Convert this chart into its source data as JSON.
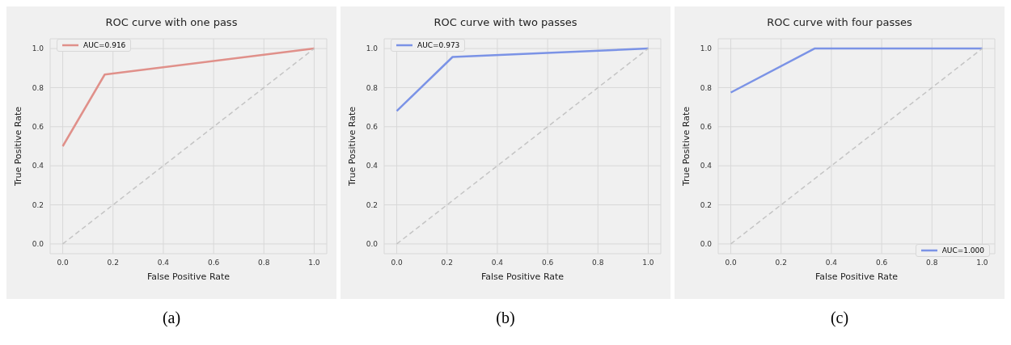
{
  "chart_data": [
    {
      "type": "line",
      "title": "ROC curve with one pass",
      "xlabel": "False Positive Rate",
      "ylabel": "True Positive Rate",
      "annotations": [
        "(a)"
      ],
      "xlim": [
        -0.05,
        1.05
      ],
      "ylim": [
        -0.05,
        1.05
      ],
      "xticks": [
        {
          "value": 0,
          "label": "0.0"
        },
        {
          "value": 0.2,
          "label": "0.2"
        },
        {
          "value": 0.4,
          "label": "0.4"
        },
        {
          "value": 0.6,
          "label": "0.6"
        },
        {
          "value": 0.8,
          "label": "0.8"
        },
        {
          "value": 1,
          "label": "1.0"
        }
      ],
      "yticks": [
        {
          "value": 0,
          "label": "0.0"
        },
        {
          "value": 0.2,
          "label": "0.2"
        },
        {
          "value": 0.4,
          "label": "0.4"
        },
        {
          "value": 0.6,
          "label": "0.6"
        },
        {
          "value": 0.8,
          "label": "0.8"
        },
        {
          "value": 1,
          "label": "1.0"
        }
      ],
      "grid": true,
      "legend": "top left",
      "line_style": "solid",
      "series": [
        {
          "name": "AUC=0.916",
          "color": "#e0908a",
          "x": [
            0,
            0.167,
            1
          ],
          "values": [
            0.5,
            0.867,
            1
          ]
        },
        {
          "color": "#c4c4c4",
          "line_style": "dashed",
          "x": [
            0,
            1
          ],
          "values": [
            0,
            1
          ]
        }
      ]
    },
    {
      "type": "line",
      "title": "ROC curve with two passes",
      "xlabel": "False Positive Rate",
      "ylabel": "True Positive Rate",
      "annotations": [
        "(b)"
      ],
      "xlim": [
        -0.05,
        1.05
      ],
      "ylim": [
        -0.05,
        1.05
      ],
      "xticks": [
        {
          "value": 0,
          "label": "0.0"
        },
        {
          "value": 0.2,
          "label": "0.2"
        },
        {
          "value": 0.4,
          "label": "0.4"
        },
        {
          "value": 0.6,
          "label": "0.6"
        },
        {
          "value": 0.8,
          "label": "0.8"
        },
        {
          "value": 1,
          "label": "1.0"
        }
      ],
      "yticks": [
        {
          "value": 0,
          "label": "0.0"
        },
        {
          "value": 0.2,
          "label": "0.2"
        },
        {
          "value": 0.4,
          "label": "0.4"
        },
        {
          "value": 0.6,
          "label": "0.6"
        },
        {
          "value": 0.8,
          "label": "0.8"
        },
        {
          "value": 1,
          "label": "1.0"
        }
      ],
      "grid": true,
      "legend": "top left",
      "line_style": "solid",
      "series": [
        {
          "name": "AUC=0.973",
          "color": "#7b93e6",
          "x": [
            0,
            0.222,
            1
          ],
          "values": [
            0.68,
            0.957,
            1
          ]
        },
        {
          "color": "#c4c4c4",
          "line_style": "dashed",
          "x": [
            0,
            1
          ],
          "values": [
            0,
            1
          ]
        }
      ]
    },
    {
      "type": "line",
      "title": "ROC curve with four passes",
      "xlabel": "False Positive Rate",
      "ylabel": "True Positive Rate",
      "annotations": [
        "(c)"
      ],
      "xlim": [
        -0.05,
        1.05
      ],
      "ylim": [
        -0.05,
        1.05
      ],
      "xticks": [
        {
          "value": 0,
          "label": "0.0"
        },
        {
          "value": 0.2,
          "label": "0.2"
        },
        {
          "value": 0.4,
          "label": "0.4"
        },
        {
          "value": 0.6,
          "label": "0.6"
        },
        {
          "value": 0.8,
          "label": "0.8"
        },
        {
          "value": 1,
          "label": "1.0"
        }
      ],
      "yticks": [
        {
          "value": 0,
          "label": "0.0"
        },
        {
          "value": 0.2,
          "label": "0.2"
        },
        {
          "value": 0.4,
          "label": "0.4"
        },
        {
          "value": 0.6,
          "label": "0.6"
        },
        {
          "value": 0.8,
          "label": "0.8"
        },
        {
          "value": 1,
          "label": "1.0"
        }
      ],
      "grid": true,
      "legend": "bottom right",
      "line_style": "solid",
      "series": [
        {
          "name": "AUC=1.000",
          "color": "#7b93e6",
          "x": [
            0,
            0.333,
            1
          ],
          "values": [
            0.775,
            1,
            1
          ]
        },
        {
          "color": "#c4c4c4",
          "line_style": "dashed",
          "x": [
            0,
            1
          ],
          "values": [
            0,
            1
          ]
        }
      ]
    }
  ]
}
